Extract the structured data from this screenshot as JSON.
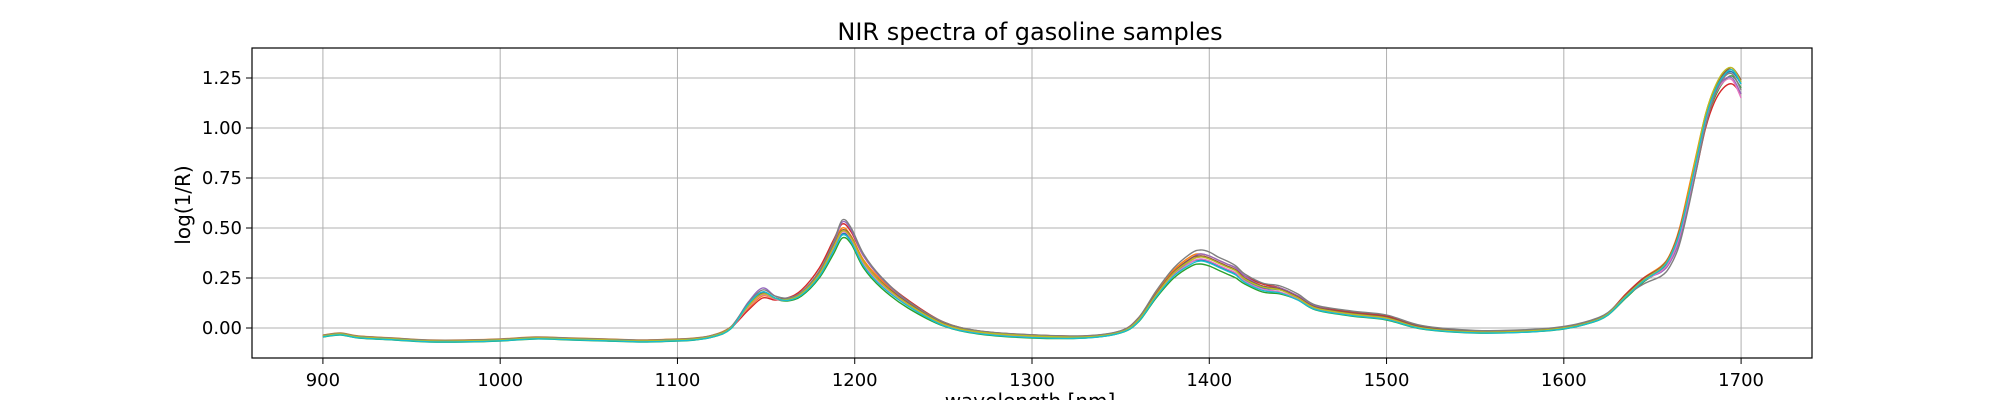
{
  "chart_data": {
    "type": "line",
    "title": "NIR spectra of gasoline samples",
    "xlabel": "wavelength [nm]",
    "ylabel": "log(1/R)",
    "xlim": [
      860,
      1740
    ],
    "ylim": [
      -0.15,
      1.4
    ],
    "xticks": [
      900,
      1000,
      1100,
      1200,
      1300,
      1400,
      1500,
      1600,
      1700
    ],
    "xtick_labels": [
      "900",
      "1000",
      "1100",
      "1200",
      "1300",
      "1400",
      "1500",
      "1600",
      "1700"
    ],
    "yticks": [
      0.0,
      0.25,
      0.5,
      0.75,
      1.0,
      1.25
    ],
    "ytick_labels": [
      "0.00",
      "0.25",
      "0.50",
      "0.75",
      "1.00",
      "1.25"
    ],
    "grid": true,
    "legend": false,
    "x": [
      900,
      910,
      920,
      940,
      960,
      980,
      1000,
      1020,
      1040,
      1060,
      1080,
      1100,
      1110,
      1120,
      1130,
      1140,
      1148,
      1155,
      1162,
      1170,
      1180,
      1188,
      1193,
      1198,
      1205,
      1215,
      1230,
      1250,
      1270,
      1300,
      1330,
      1350,
      1360,
      1370,
      1380,
      1390,
      1395,
      1400,
      1405,
      1410,
      1415,
      1420,
      1430,
      1440,
      1450,
      1460,
      1480,
      1500,
      1520,
      1550,
      1580,
      1600,
      1615,
      1625,
      1635,
      1645,
      1655,
      1660,
      1665,
      1670,
      1675,
      1680,
      1685,
      1690,
      1695,
      1700
    ],
    "series": [
      {
        "color": "#1f77b4",
        "values": [
          -0.04,
          -0.03,
          -0.045,
          -0.055,
          -0.065,
          -0.065,
          -0.06,
          -0.05,
          -0.055,
          -0.06,
          -0.065,
          -0.06,
          -0.055,
          -0.04,
          0.0,
          0.12,
          0.18,
          0.15,
          0.14,
          0.17,
          0.26,
          0.39,
          0.47,
          0.44,
          0.32,
          0.22,
          0.12,
          0.02,
          -0.02,
          -0.04,
          -0.045,
          -0.02,
          0.04,
          0.16,
          0.27,
          0.33,
          0.34,
          0.33,
          0.31,
          0.29,
          0.27,
          0.24,
          0.2,
          0.19,
          0.15,
          0.1,
          0.07,
          0.05,
          0.0,
          -0.02,
          -0.015,
          0.0,
          0.03,
          0.07,
          0.16,
          0.24,
          0.3,
          0.36,
          0.47,
          0.65,
          0.85,
          1.05,
          1.18,
          1.26,
          1.28,
          1.22
        ]
      },
      {
        "color": "#ff7f0e",
        "values": [
          -0.035,
          -0.025,
          -0.04,
          -0.05,
          -0.06,
          -0.06,
          -0.055,
          -0.045,
          -0.05,
          -0.055,
          -0.06,
          -0.055,
          -0.05,
          -0.035,
          0.005,
          0.1,
          0.16,
          0.145,
          0.145,
          0.18,
          0.28,
          0.42,
          0.5,
          0.46,
          0.34,
          0.24,
          0.13,
          0.03,
          -0.015,
          -0.035,
          -0.04,
          -0.015,
          0.05,
          0.18,
          0.29,
          0.36,
          0.37,
          0.36,
          0.34,
          0.32,
          0.3,
          0.26,
          0.22,
          0.2,
          0.16,
          0.11,
          0.08,
          0.06,
          0.01,
          -0.015,
          -0.01,
          0.005,
          0.035,
          0.075,
          0.17,
          0.25,
          0.31,
          0.37,
          0.49,
          0.68,
          0.88,
          1.07,
          1.2,
          1.27,
          1.29,
          1.23
        ]
      },
      {
        "color": "#2ca02c",
        "values": [
          -0.045,
          -0.035,
          -0.05,
          -0.06,
          -0.07,
          -0.07,
          -0.065,
          -0.055,
          -0.06,
          -0.065,
          -0.07,
          -0.065,
          -0.06,
          -0.045,
          -0.005,
          0.11,
          0.17,
          0.145,
          0.135,
          0.16,
          0.25,
          0.37,
          0.45,
          0.42,
          0.3,
          0.2,
          0.1,
          0.01,
          -0.03,
          -0.05,
          -0.05,
          -0.025,
          0.03,
          0.15,
          0.25,
          0.31,
          0.32,
          0.31,
          0.29,
          0.27,
          0.25,
          0.22,
          0.18,
          0.17,
          0.14,
          0.09,
          0.06,
          0.04,
          -0.005,
          -0.025,
          -0.02,
          -0.005,
          0.025,
          0.065,
          0.15,
          0.23,
          0.29,
          0.35,
          0.45,
          0.62,
          0.82,
          1.02,
          1.15,
          1.23,
          1.26,
          1.2
        ]
      },
      {
        "color": "#d62728",
        "values": [
          -0.04,
          -0.03,
          -0.045,
          -0.055,
          -0.065,
          -0.065,
          -0.06,
          -0.05,
          -0.055,
          -0.06,
          -0.065,
          -0.06,
          -0.055,
          -0.04,
          0.0,
          0.09,
          0.15,
          0.14,
          0.15,
          0.19,
          0.3,
          0.44,
          0.52,
          0.48,
          0.36,
          0.25,
          0.14,
          0.03,
          -0.015,
          -0.035,
          -0.04,
          -0.015,
          0.05,
          0.17,
          0.28,
          0.34,
          0.36,
          0.35,
          0.33,
          0.31,
          0.29,
          0.26,
          0.22,
          0.2,
          0.16,
          0.11,
          0.08,
          0.06,
          0.01,
          -0.015,
          -0.01,
          0.005,
          0.035,
          0.075,
          0.17,
          0.25,
          0.3,
          0.35,
          0.44,
          0.6,
          0.8,
          1.0,
          1.13,
          1.2,
          1.22,
          1.17
        ]
      },
      {
        "color": "#9467bd",
        "values": [
          -0.04,
          -0.03,
          -0.045,
          -0.055,
          -0.065,
          -0.065,
          -0.06,
          -0.05,
          -0.055,
          -0.06,
          -0.065,
          -0.06,
          -0.055,
          -0.04,
          0.0,
          0.13,
          0.2,
          0.16,
          0.15,
          0.18,
          0.28,
          0.42,
          0.53,
          0.49,
          0.36,
          0.25,
          0.13,
          0.02,
          -0.02,
          -0.04,
          -0.045,
          -0.02,
          0.04,
          0.17,
          0.28,
          0.35,
          0.37,
          0.36,
          0.34,
          0.32,
          0.3,
          0.26,
          0.21,
          0.2,
          0.16,
          0.11,
          0.07,
          0.05,
          0.0,
          -0.02,
          -0.015,
          0.0,
          0.03,
          0.07,
          0.16,
          0.24,
          0.28,
          0.33,
          0.43,
          0.61,
          0.82,
          1.03,
          1.17,
          1.24,
          1.25,
          1.17
        ]
      },
      {
        "color": "#8c564b",
        "values": [
          -0.038,
          -0.028,
          -0.043,
          -0.053,
          -0.063,
          -0.063,
          -0.058,
          -0.048,
          -0.053,
          -0.058,
          -0.063,
          -0.058,
          -0.053,
          -0.038,
          0.002,
          0.115,
          0.175,
          0.15,
          0.145,
          0.175,
          0.275,
          0.41,
          0.49,
          0.455,
          0.33,
          0.23,
          0.125,
          0.025,
          -0.018,
          -0.038,
          -0.043,
          -0.018,
          0.045,
          0.17,
          0.28,
          0.35,
          0.36,
          0.35,
          0.33,
          0.31,
          0.29,
          0.25,
          0.21,
          0.195,
          0.155,
          0.105,
          0.075,
          0.055,
          0.005,
          -0.018,
          -0.013,
          0.002,
          0.032,
          0.072,
          0.165,
          0.245,
          0.305,
          0.365,
          0.48,
          0.66,
          0.86,
          1.06,
          1.19,
          1.27,
          1.3,
          1.24
        ]
      },
      {
        "color": "#e377c2",
        "values": [
          -0.042,
          -0.032,
          -0.047,
          -0.057,
          -0.067,
          -0.067,
          -0.062,
          -0.052,
          -0.057,
          -0.062,
          -0.067,
          -0.062,
          -0.057,
          -0.042,
          -0.002,
          0.105,
          0.165,
          0.145,
          0.14,
          0.17,
          0.265,
          0.4,
          0.48,
          0.445,
          0.32,
          0.22,
          0.115,
          0.015,
          -0.025,
          -0.045,
          -0.048,
          -0.022,
          0.035,
          0.16,
          0.265,
          0.33,
          0.345,
          0.335,
          0.315,
          0.295,
          0.275,
          0.235,
          0.195,
          0.18,
          0.145,
          0.095,
          0.065,
          0.045,
          -0.002,
          -0.022,
          -0.018,
          -0.002,
          0.028,
          0.068,
          0.155,
          0.235,
          0.285,
          0.34,
          0.45,
          0.63,
          0.83,
          1.03,
          1.16,
          1.23,
          1.24,
          1.15
        ]
      },
      {
        "color": "#7f7f7f",
        "values": [
          -0.036,
          -0.026,
          -0.041,
          -0.051,
          -0.061,
          -0.061,
          -0.056,
          -0.046,
          -0.051,
          -0.056,
          -0.061,
          -0.056,
          -0.051,
          -0.036,
          0.004,
          0.125,
          0.19,
          0.16,
          0.15,
          0.18,
          0.285,
          0.43,
          0.54,
          0.5,
          0.37,
          0.255,
          0.135,
          0.03,
          -0.014,
          -0.034,
          -0.039,
          -0.014,
          0.05,
          0.185,
          0.3,
          0.375,
          0.39,
          0.38,
          0.355,
          0.335,
          0.31,
          0.27,
          0.225,
          0.21,
          0.17,
          0.115,
          0.085,
          0.065,
          0.012,
          -0.012,
          -0.008,
          0.008,
          0.038,
          0.078,
          0.16,
          0.22,
          0.26,
          0.31,
          0.41,
          0.59,
          0.8,
          1.01,
          1.16,
          1.25,
          1.27,
          1.19
        ]
      },
      {
        "color": "#bcbd22",
        "values": [
          -0.04,
          -0.03,
          -0.045,
          -0.055,
          -0.065,
          -0.065,
          -0.06,
          -0.05,
          -0.055,
          -0.06,
          -0.065,
          -0.06,
          -0.055,
          -0.04,
          0.0,
          0.11,
          0.17,
          0.148,
          0.142,
          0.172,
          0.27,
          0.405,
          0.485,
          0.45,
          0.33,
          0.225,
          0.12,
          0.02,
          -0.02,
          -0.04,
          -0.045,
          -0.02,
          0.04,
          0.165,
          0.275,
          0.34,
          0.355,
          0.345,
          0.325,
          0.305,
          0.285,
          0.245,
          0.205,
          0.19,
          0.15,
          0.1,
          0.07,
          0.05,
          0.0,
          -0.02,
          -0.015,
          0.0,
          0.03,
          0.07,
          0.16,
          0.24,
          0.3,
          0.36,
          0.47,
          0.66,
          0.87,
          1.07,
          1.2,
          1.28,
          1.3,
          1.23
        ]
      },
      {
        "color": "#17becf",
        "values": [
          -0.044,
          -0.034,
          -0.049,
          -0.059,
          -0.069,
          -0.069,
          -0.064,
          -0.054,
          -0.059,
          -0.064,
          -0.069,
          -0.064,
          -0.059,
          -0.044,
          -0.004,
          0.12,
          0.18,
          0.15,
          0.138,
          0.165,
          0.258,
          0.385,
          0.465,
          0.43,
          0.31,
          0.21,
          0.11,
          0.012,
          -0.028,
          -0.048,
          -0.05,
          -0.024,
          0.032,
          0.155,
          0.26,
          0.32,
          0.335,
          0.325,
          0.305,
          0.285,
          0.265,
          0.228,
          0.188,
          0.175,
          0.14,
          0.092,
          0.062,
          0.042,
          -0.004,
          -0.024,
          -0.02,
          -0.004,
          0.026,
          0.066,
          0.155,
          0.235,
          0.295,
          0.355,
          0.465,
          0.645,
          0.845,
          1.045,
          1.18,
          1.26,
          1.29,
          1.22
        ]
      }
    ]
  }
}
